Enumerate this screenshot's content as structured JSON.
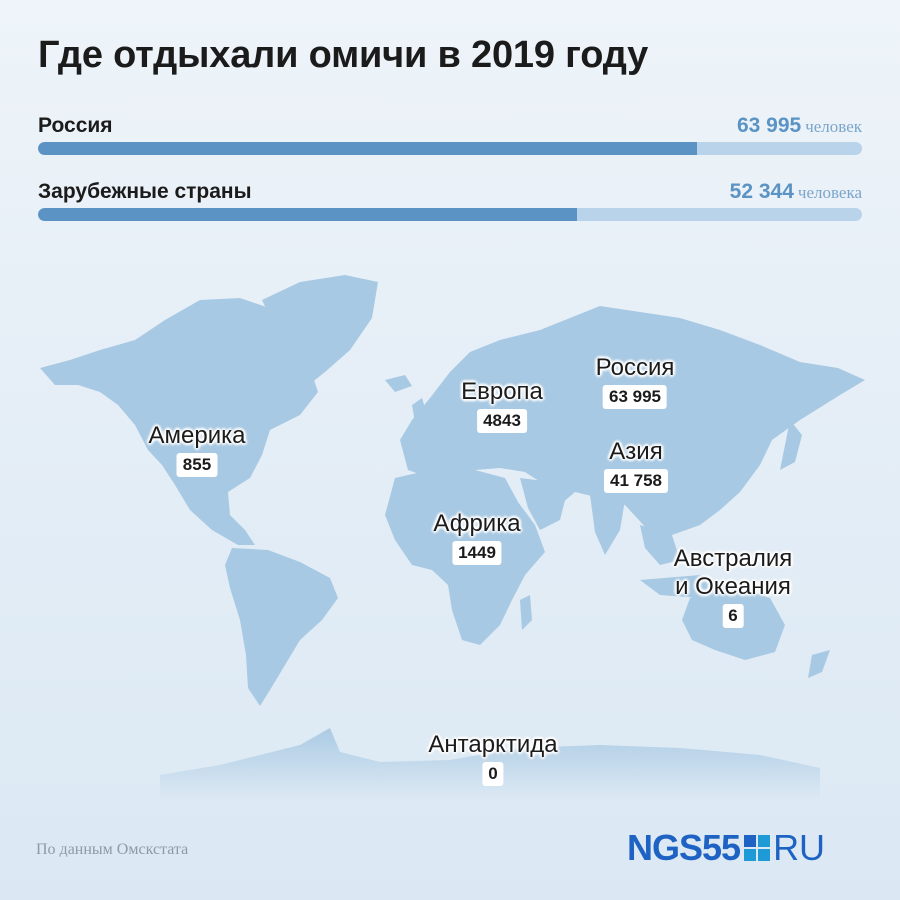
{
  "title": "Где отдыхали омичи в 2019 году",
  "colors": {
    "bar_fill": "#5b93c4",
    "bar_track": "#b9d4ea",
    "land": "#a8c9e3",
    "accent_text": "#5b93c4"
  },
  "chart_data": {
    "type": "bar",
    "orientation": "horizontal",
    "categories": [
      "Россия",
      "Зарубежные страны"
    ],
    "values": [
      63995,
      52344
    ],
    "value_labels": [
      "63 995",
      "52 344"
    ],
    "units": [
      "человек",
      "человека"
    ],
    "xlim": [
      0,
      80000
    ]
  },
  "map": {
    "regions": [
      {
        "name": "Америка",
        "value": "855"
      },
      {
        "name": "Европа",
        "value": "4843"
      },
      {
        "name": "Россия",
        "value": "63 995"
      },
      {
        "name": "Азия",
        "value": "41 758"
      },
      {
        "name": "Африка",
        "value": "1449"
      },
      {
        "name": "Австралия\nи Океания",
        "value": "6"
      },
      {
        "name": "Антарктида",
        "value": "0"
      }
    ]
  },
  "source": "По данным Омскстата",
  "logo": {
    "left": "NGS55",
    "right": "RU"
  }
}
